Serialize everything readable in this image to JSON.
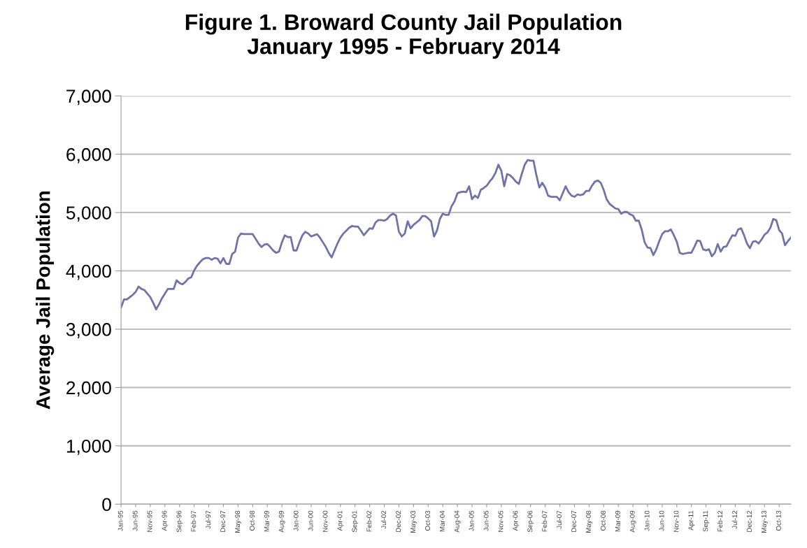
{
  "chart_data": {
    "type": "line",
    "title": "Figure 1. Broward County Jail Population\nJanuary 1995 - February 2014",
    "ylabel": "Average Jail Population",
    "categories": [
      "Jan-95",
      null,
      null,
      null,
      null,
      "Jun-95",
      null,
      null,
      null,
      null,
      "Nov-95",
      null,
      null,
      null,
      null,
      "Apr-96",
      null,
      null,
      null,
      null,
      "Sep-96",
      null,
      null,
      null,
      null,
      "Feb-97",
      null,
      null,
      null,
      null,
      "Jul-97",
      null,
      null,
      null,
      null,
      "Dec-97",
      null,
      null,
      null,
      null,
      "May-98",
      null,
      null,
      null,
      null,
      "Oct-98",
      null,
      null,
      null,
      null,
      "Mar-99",
      null,
      null,
      null,
      null,
      "Aug-99",
      null,
      null,
      null,
      null,
      "Jan-00",
      null,
      null,
      null,
      null,
      "Jun-00",
      null,
      null,
      null,
      null,
      "Nov-00",
      null,
      null,
      null,
      null,
      "Apr-01",
      null,
      null,
      null,
      null,
      "Sep-01",
      null,
      null,
      null,
      null,
      "Feb-02",
      null,
      null,
      null,
      null,
      "Jul-02",
      null,
      null,
      null,
      null,
      "Dec-02",
      null,
      null,
      null,
      null,
      "May-03",
      null,
      null,
      null,
      null,
      "Oct-03",
      null,
      null,
      null,
      null,
      "Mar-04",
      null,
      null,
      null,
      null,
      "Aug-04",
      null,
      null,
      null,
      null,
      "Jan-05",
      null,
      null,
      null,
      null,
      "Jun-05",
      null,
      null,
      null,
      null,
      "Nov-05",
      null,
      null,
      null,
      null,
      "Apr-06",
      null,
      null,
      null,
      null,
      "Sep-06",
      null,
      null,
      null,
      null,
      "Feb-07",
      null,
      null,
      null,
      null,
      "Jul-07",
      null,
      null,
      null,
      null,
      "Dec-07",
      null,
      null,
      null,
      null,
      "May-08",
      null,
      null,
      null,
      null,
      "Oct-08",
      null,
      null,
      null,
      null,
      "Mar-09",
      null,
      null,
      null,
      null,
      "Aug-09",
      null,
      null,
      null,
      null,
      "Jan-10",
      null,
      null,
      null,
      null,
      "Jun-10",
      null,
      null,
      null,
      null,
      "Nov-10",
      null,
      null,
      null,
      null,
      "Apr-11",
      null,
      null,
      null,
      null,
      "Sep-11",
      null,
      null,
      null,
      null,
      "Feb-12",
      null,
      null,
      null,
      null,
      "Jul-12",
      null,
      null,
      null,
      null,
      "Dec-12",
      null,
      null,
      null,
      null,
      "May-13",
      null,
      null,
      null,
      null,
      "Oct-13",
      null,
      null,
      null,
      null
    ],
    "series": [
      {
        "color": "#7073a8",
        "values": [
          3370,
          3510,
          3510,
          3550,
          3590,
          3640,
          3730,
          3690,
          3670,
          3610,
          3550,
          3450,
          3340,
          3430,
          3530,
          3610,
          3690,
          3690,
          3690,
          3840,
          3790,
          3770,
          3810,
          3870,
          3890,
          4010,
          4090,
          4150,
          4200,
          4220,
          4220,
          4190,
          4220,
          4210,
          4130,
          4220,
          4120,
          4120,
          4290,
          4330,
          4570,
          4640,
          4630,
          4630,
          4630,
          4630,
          4550,
          4470,
          4410,
          4450,
          4460,
          4410,
          4350,
          4310,
          4330,
          4490,
          4610,
          4580,
          4580,
          4350,
          4350,
          4490,
          4610,
          4670,
          4640,
          4590,
          4610,
          4630,
          4570,
          4490,
          4410,
          4310,
          4230,
          4350,
          4470,
          4570,
          4640,
          4690,
          4740,
          4770,
          4760,
          4760,
          4690,
          4610,
          4670,
          4730,
          4720,
          4830,
          4870,
          4870,
          4860,
          4890,
          4950,
          4980,
          4950,
          4670,
          4590,
          4640,
          4850,
          4730,
          4790,
          4830,
          4870,
          4940,
          4940,
          4900,
          4850,
          4590,
          4690,
          4890,
          4980,
          4960,
          4960,
          5110,
          5190,
          5330,
          5350,
          5360,
          5350,
          5450,
          5230,
          5290,
          5250,
          5390,
          5420,
          5460,
          5530,
          5590,
          5680,
          5820,
          5720,
          5450,
          5660,
          5640,
          5590,
          5530,
          5490,
          5660,
          5820,
          5900,
          5890,
          5890,
          5640,
          5430,
          5510,
          5430,
          5290,
          5270,
          5270,
          5270,
          5210,
          5330,
          5450,
          5350,
          5290,
          5270,
          5310,
          5300,
          5310,
          5370,
          5370,
          5460,
          5530,
          5550,
          5510,
          5390,
          5230,
          5150,
          5110,
          5070,
          5060,
          4980,
          5010,
          5010,
          4970,
          4950,
          4860,
          4860,
          4710,
          4490,
          4400,
          4390,
          4270,
          4370,
          4510,
          4630,
          4680,
          4680,
          4710,
          4610,
          4500,
          4310,
          4290,
          4300,
          4310,
          4310,
          4410,
          4520,
          4510,
          4370,
          4350,
          4370,
          4250,
          4310,
          4460,
          4330,
          4410,
          4420,
          4520,
          4610,
          4600,
          4710,
          4730,
          4610,
          4470,
          4390,
          4500,
          4510,
          4470,
          4540,
          4620,
          4660,
          4740,
          4890,
          4870,
          4700,
          4640,
          4440,
          4510,
          4570
        ]
      }
    ],
    "ylim": [
      0,
      7000
    ],
    "yticks": [
      {
        "value": 0,
        "label": "0"
      },
      {
        "value": 1000,
        "label": "1,000"
      },
      {
        "value": 2000,
        "label": "2,000"
      },
      {
        "value": 3000,
        "label": "3,000"
      },
      {
        "value": 4000,
        "label": "4,000"
      },
      {
        "value": 5000,
        "label": "5,000"
      },
      {
        "value": 6000,
        "label": "6,000"
      },
      {
        "value": 7000,
        "label": "7,000"
      }
    ],
    "grid": "y",
    "marker": "none",
    "line_style": "solid"
  }
}
